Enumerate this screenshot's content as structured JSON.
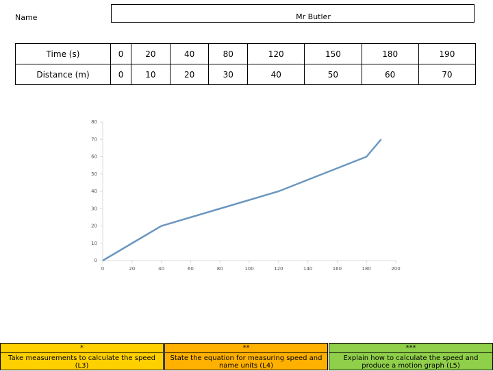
{
  "header": {
    "name_label": "Name",
    "name_value": "Mr Butler"
  },
  "table": {
    "rows": [
      [
        "Time (s)",
        0,
        20,
        40,
        80,
        120,
        150,
        180,
        190
      ],
      [
        "Distance (m)",
        0,
        10,
        20,
        30,
        40,
        50,
        60,
        70
      ]
    ]
  },
  "chart_data": {
    "type": "line",
    "x": [
      0,
      20,
      40,
      80,
      120,
      150,
      180,
      190
    ],
    "values": [
      0,
      10,
      20,
      30,
      40,
      50,
      60,
      70
    ],
    "color": "#6a96c0",
    "xlim": [
      0,
      200
    ],
    "xticks": [
      0,
      20,
      40,
      60,
      80,
      100,
      120,
      140,
      160,
      180,
      200
    ],
    "ylim": [
      0,
      80
    ],
    "yticks": [
      0,
      10,
      20,
      30,
      40,
      50,
      60,
      70,
      80
    ],
    "grid": false
  },
  "footer": [
    {
      "stars": "*",
      "text": "Take measurements to calculate the speed (L3)"
    },
    {
      "stars": "**",
      "text": "State the equation for measuring speed and name units (L4)"
    },
    {
      "stars": "***",
      "text": "Explain how to calculate the speed and produce a motion graph (L5)"
    }
  ]
}
